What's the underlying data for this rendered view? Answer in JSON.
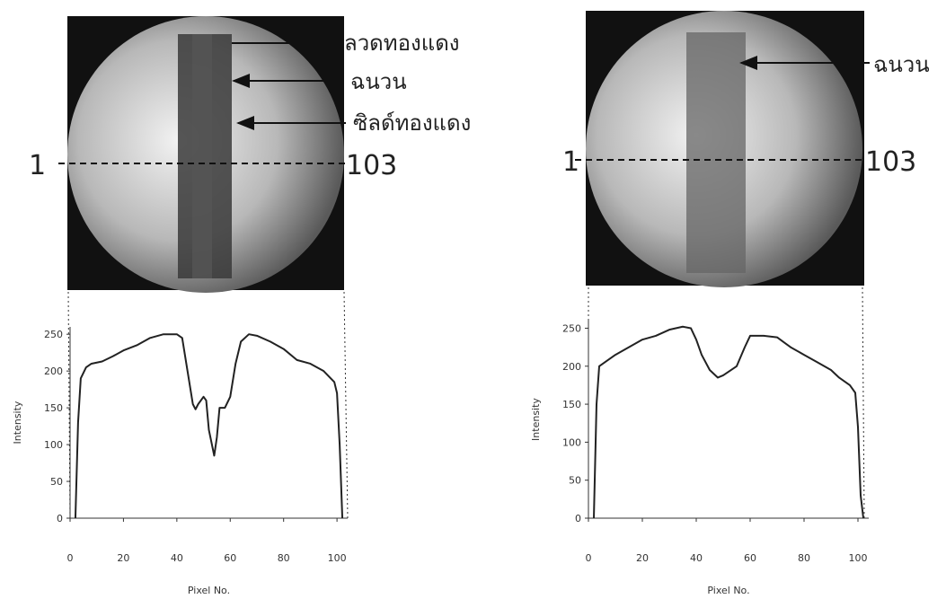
{
  "images": [
    {
      "labels": [
        "ลวดทองแดง",
        "ฉนวน",
        "ซิลด์ทองแดง"
      ],
      "start": "1",
      "end": "103"
    },
    {
      "labels": [
        "ฉนวน"
      ],
      "start": "1",
      "end": "103"
    }
  ],
  "chart_data": [
    {
      "type": "line",
      "x_label": "Pixel No.",
      "y_label": "Intensity",
      "color": "#222",
      "xlim": [
        0,
        104
      ],
      "ylim": [
        0,
        260
      ],
      "xticks": [
        0,
        20,
        40,
        60,
        80,
        100
      ],
      "yticks": [
        0,
        50,
        100,
        150,
        200,
        250
      ],
      "x": [
        2,
        3,
        4,
        6,
        8,
        12,
        16,
        20,
        25,
        30,
        35,
        40,
        42,
        44,
        46,
        47,
        48,
        50,
        51,
        52,
        54,
        55,
        56,
        58,
        60,
        62,
        64,
        67,
        70,
        75,
        80,
        85,
        90,
        95,
        99,
        100,
        101,
        102
      ],
      "values": [
        0,
        130,
        190,
        205,
        210,
        213,
        220,
        228,
        235,
        245,
        250,
        250,
        245,
        200,
        155,
        148,
        155,
        165,
        160,
        120,
        85,
        110,
        150,
        150,
        165,
        210,
        240,
        250,
        248,
        240,
        230,
        215,
        210,
        200,
        185,
        170,
        100,
        0
      ]
    },
    {
      "type": "line",
      "x_label": "Pixel No.",
      "y_label": "Intensity",
      "color": "#222",
      "xlim": [
        0,
        104
      ],
      "ylim": [
        0,
        260
      ],
      "xticks": [
        0,
        20,
        40,
        60,
        80,
        100
      ],
      "yticks": [
        0,
        50,
        100,
        150,
        200,
        250
      ],
      "x": [
        2,
        3,
        4,
        6,
        10,
        15,
        20,
        25,
        30,
        35,
        38,
        40,
        42,
        45,
        48,
        50,
        55,
        58,
        60,
        65,
        70,
        75,
        80,
        85,
        90,
        93,
        95,
        97,
        99,
        100,
        101,
        102
      ],
      "values": [
        0,
        150,
        200,
        205,
        215,
        225,
        235,
        240,
        248,
        252,
        250,
        235,
        215,
        195,
        185,
        188,
        200,
        225,
        240,
        240,
        238,
        225,
        215,
        205,
        195,
        185,
        180,
        175,
        165,
        120,
        30,
        0
      ]
    }
  ]
}
